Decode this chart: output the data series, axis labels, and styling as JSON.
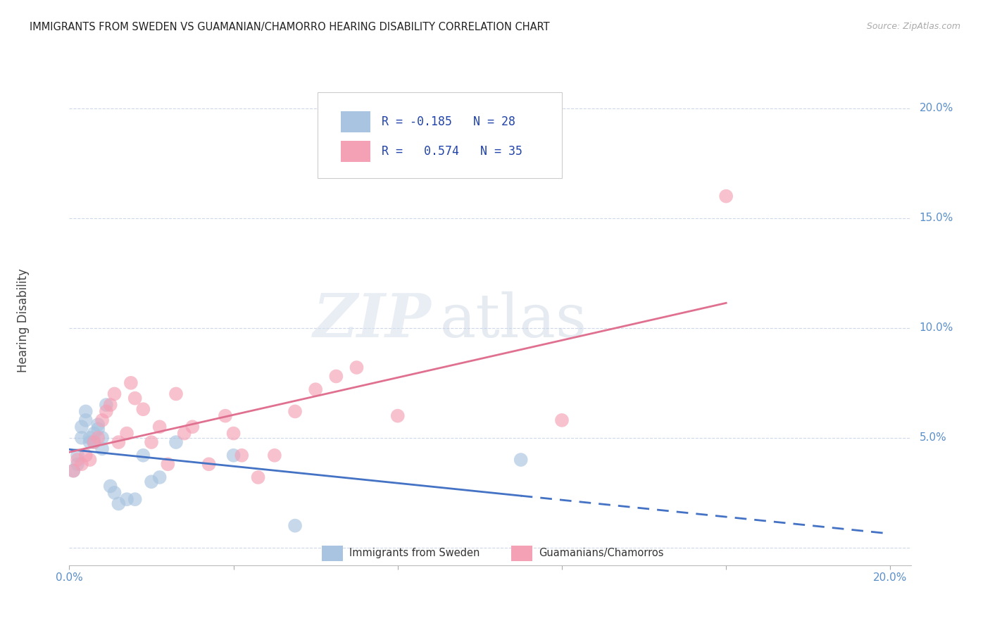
{
  "title": "IMMIGRANTS FROM SWEDEN VS GUAMANIAN/CHAMORRO HEARING DISABILITY CORRELATION CHART",
  "source": "Source: ZipAtlas.com",
  "ylabel": "Hearing Disability",
  "xlim": [
    0.0,
    0.205
  ],
  "ylim": [
    -0.008,
    0.215
  ],
  "series1_label": "Immigrants from Sweden",
  "series1_R": "-0.185",
  "series1_N": "28",
  "series1_color": "#a8c4e0",
  "series1_line_color": "#4472c4",
  "series2_label": "Guamanians/Chamorros",
  "series2_R": "0.574",
  "series2_N": "35",
  "series2_color": "#f4a0b5",
  "series2_line_color": "#e07090",
  "background_color": "#ffffff",
  "grid_color": "#c8d4e8",
  "axis_tick_color": "#5b8fc9",
  "title_color": "#222222",
  "watermark_zip": "ZIP",
  "watermark_atlas": "atlas",
  "series1_x": [
    0.001,
    0.002,
    0.002,
    0.003,
    0.003,
    0.004,
    0.004,
    0.005,
    0.005,
    0.006,
    0.006,
    0.007,
    0.007,
    0.008,
    0.008,
    0.009,
    0.01,
    0.011,
    0.012,
    0.014,
    0.016,
    0.018,
    0.02,
    0.022,
    0.026,
    0.04,
    0.055,
    0.11
  ],
  "series1_y": [
    0.035,
    0.038,
    0.042,
    0.05,
    0.055,
    0.058,
    0.062,
    0.05,
    0.048,
    0.052,
    0.048,
    0.054,
    0.056,
    0.045,
    0.05,
    0.065,
    0.028,
    0.025,
    0.02,
    0.022,
    0.022,
    0.042,
    0.03,
    0.032,
    0.048,
    0.042,
    0.01,
    0.04
  ],
  "series2_x": [
    0.001,
    0.002,
    0.003,
    0.004,
    0.005,
    0.006,
    0.007,
    0.008,
    0.009,
    0.01,
    0.011,
    0.012,
    0.014,
    0.015,
    0.016,
    0.018,
    0.02,
    0.022,
    0.024,
    0.026,
    0.028,
    0.03,
    0.034,
    0.038,
    0.04,
    0.042,
    0.046,
    0.05,
    0.055,
    0.06,
    0.065,
    0.07,
    0.08,
    0.12,
    0.16
  ],
  "series2_y": [
    0.035,
    0.04,
    0.038,
    0.042,
    0.04,
    0.048,
    0.05,
    0.058,
    0.062,
    0.065,
    0.07,
    0.048,
    0.052,
    0.075,
    0.068,
    0.063,
    0.048,
    0.055,
    0.038,
    0.07,
    0.052,
    0.055,
    0.038,
    0.06,
    0.052,
    0.042,
    0.032,
    0.042,
    0.062,
    0.072,
    0.078,
    0.082,
    0.06,
    0.058,
    0.16
  ]
}
